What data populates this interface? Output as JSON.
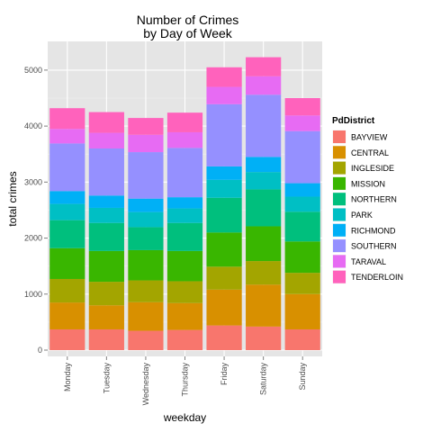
{
  "chart_data": {
    "type": "bar",
    "stacked": true,
    "title": [
      "Number of Crimes",
      "by Day of Week"
    ],
    "xlabel": "weekday",
    "ylabel": "total crimes",
    "ylim": [
      0,
      5400
    ],
    "yticks": [
      0,
      1000,
      2000,
      3000,
      4000,
      5000
    ],
    "grid": true,
    "legend_title": "PdDistrict",
    "legend_position": "right",
    "categories": [
      "Monday",
      "Tuesday",
      "Wednesday",
      "Thursday",
      "Friday",
      "Saturday",
      "Sunday"
    ],
    "series": [
      {
        "name": "BAYVIEW",
        "color": "#F8766D",
        "values": [
          370,
          370,
          345,
          360,
          440,
          420,
          370
        ]
      },
      {
        "name": "CENTRAL",
        "color": "#D89000",
        "values": [
          480,
          430,
          510,
          480,
          640,
          750,
          630
        ]
      },
      {
        "name": "INGLESIDE",
        "color": "#A3A500",
        "values": [
          420,
          420,
          390,
          390,
          410,
          420,
          380
        ]
      },
      {
        "name": "MISSION",
        "color": "#39B600",
        "values": [
          550,
          550,
          540,
          540,
          610,
          620,
          560
        ]
      },
      {
        "name": "NORTHERN",
        "color": "#00BF7D",
        "values": [
          500,
          500,
          410,
          500,
          620,
          660,
          530
        ]
      },
      {
        "name": "PARK",
        "color": "#00BFC4",
        "values": [
          290,
          270,
          270,
          260,
          320,
          310,
          270
        ]
      },
      {
        "name": "RICHMOND",
        "color": "#00B0F6",
        "values": [
          230,
          220,
          240,
          200,
          240,
          270,
          240
        ]
      },
      {
        "name": "SOUTHERN",
        "color": "#9590FF",
        "values": [
          850,
          840,
          830,
          880,
          1110,
          1110,
          930
        ]
      },
      {
        "name": "TARAVAL",
        "color": "#E76BF3",
        "values": [
          260,
          280,
          310,
          280,
          310,
          330,
          280
        ]
      },
      {
        "name": "TENDERLOIN",
        "color": "#FF62BC",
        "values": [
          370,
          370,
          300,
          350,
          350,
          340,
          310
        ]
      }
    ]
  }
}
